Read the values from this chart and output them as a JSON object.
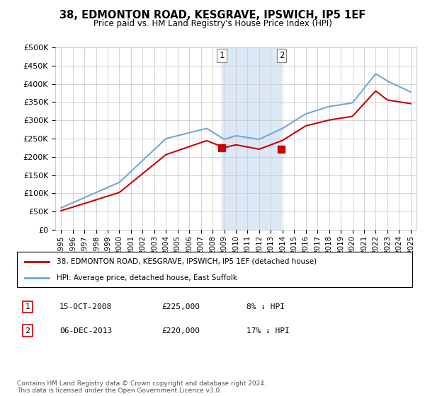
{
  "title": "38, EDMONTON ROAD, KESGRAVE, IPSWICH, IP5 1EF",
  "subtitle": "Price paid vs. HM Land Registry's House Price Index (HPI)",
  "ylabel_ticks": [
    "£0",
    "£50K",
    "£100K",
    "£150K",
    "£200K",
    "£250K",
    "£300K",
    "£350K",
    "£400K",
    "£450K",
    "£500K"
  ],
  "ytick_values": [
    0,
    50000,
    100000,
    150000,
    200000,
    250000,
    300000,
    350000,
    400000,
    450000,
    500000
  ],
  "ylim": [
    0,
    500000
  ],
  "sale1": {
    "date_num": 2008.79,
    "price": 225000,
    "label": "1",
    "date_str": "15-OCT-2008",
    "pct": "8% ↓ HPI"
  },
  "sale2": {
    "date_num": 2013.92,
    "price": 220000,
    "label": "2",
    "date_str": "06-DEC-2013",
    "pct": "17% ↓ HPI"
  },
  "hpi_color": "#6fa8dc",
  "price_color": "#cc0000",
  "marker_color": "#cc0000",
  "shade_color": "#dce8f5",
  "legend_label1": "38, EDMONTON ROAD, KESGRAVE, IPSWICH, IP5 1EF (detached house)",
  "legend_label2": "HPI: Average price, detached house, East Suffolk",
  "footnote": "Contains HM Land Registry data © Crown copyright and database right 2024.\nThis data is licensed under the Open Government Licence v3.0.",
  "table_rows": [
    [
      "1",
      "15-OCT-2008",
      "£225,000",
      "8% ↓ HPI"
    ],
    [
      "2",
      "06-DEC-2013",
      "£220,000",
      "17% ↓ HPI"
    ]
  ],
  "background_color": "#ffffff",
  "grid_color": "#cccccc"
}
